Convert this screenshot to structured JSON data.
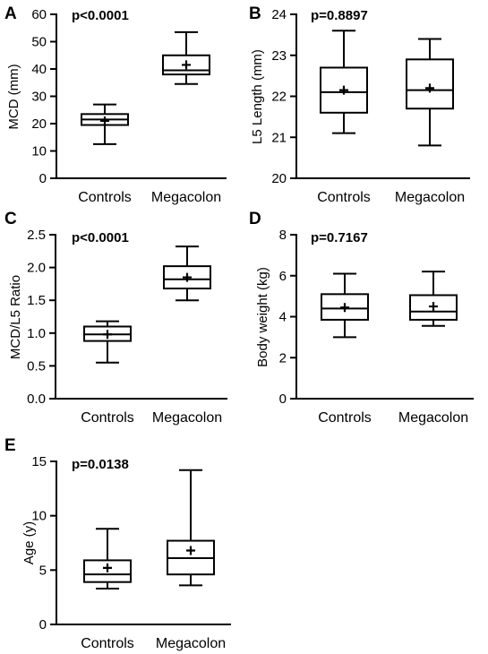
{
  "chart_data": [
    {
      "type": "box",
      "panel": "A",
      "annotation": "p<0.0001",
      "ylabel": "MCD (mm)",
      "ylim": [
        0,
        60
      ],
      "yticks": [
        0,
        10,
        20,
        30,
        40,
        50,
        60
      ],
      "categories": [
        "Controls",
        "Megacolon"
      ],
      "boxes": [
        {
          "min": 12.5,
          "q1": 19.5,
          "median": 21.5,
          "q3": 23.5,
          "max": 27.0,
          "mean": 21.0
        },
        {
          "min": 34.5,
          "q1": 38.0,
          "median": 39.5,
          "q3": 45.0,
          "max": 53.5,
          "mean": 41.5
        }
      ]
    },
    {
      "type": "box",
      "panel": "B",
      "annotation": "p=0.8897",
      "ylabel": "L5 Length (mm)",
      "ylim": [
        20,
        24
      ],
      "yticks": [
        20,
        21,
        22,
        23,
        24
      ],
      "categories": [
        "Controls",
        "Megacolon"
      ],
      "boxes": [
        {
          "min": 21.1,
          "q1": 21.6,
          "median": 22.1,
          "q3": 22.7,
          "max": 23.6,
          "mean": 22.15
        },
        {
          "min": 20.8,
          "q1": 21.7,
          "median": 22.15,
          "q3": 22.9,
          "max": 23.4,
          "mean": 22.2
        }
      ]
    },
    {
      "type": "box",
      "panel": "C",
      "annotation": "p<0.0001",
      "ylabel": "MCD/L5 Ratio",
      "ylim": [
        0,
        2.5
      ],
      "yticks": [
        0.0,
        0.5,
        1.0,
        1.5,
        2.0,
        2.5
      ],
      "ytick_labels": [
        "0.0",
        "0.5",
        "1.0",
        "1.5",
        "2.0",
        "2.5"
      ],
      "categories": [
        "Controls",
        "Megacolon"
      ],
      "boxes": [
        {
          "min": 0.55,
          "q1": 0.88,
          "median": 0.98,
          "q3": 1.1,
          "max": 1.18,
          "mean": 0.98
        },
        {
          "min": 1.5,
          "q1": 1.68,
          "median": 1.82,
          "q3": 2.02,
          "max": 2.32,
          "mean": 1.85
        }
      ]
    },
    {
      "type": "box",
      "panel": "D",
      "annotation": "p=0.7167",
      "ylabel": "Body weight (kg)",
      "ylim": [
        0,
        8
      ],
      "yticks": [
        0,
        2,
        4,
        6,
        8
      ],
      "categories": [
        "Controls",
        "Megacolon"
      ],
      "boxes": [
        {
          "min": 3.0,
          "q1": 3.85,
          "median": 4.4,
          "q3": 5.1,
          "max": 6.1,
          "mean": 4.45
        },
        {
          "min": 3.55,
          "q1": 3.85,
          "median": 4.25,
          "q3": 5.05,
          "max": 6.2,
          "mean": 4.5
        }
      ]
    },
    {
      "type": "box",
      "panel": "E",
      "annotation": "p=0.0138",
      "ylabel": "Age (y)",
      "ylim": [
        0,
        15
      ],
      "yticks": [
        0,
        5,
        10,
        15
      ],
      "categories": [
        "Controls",
        "Megacolon"
      ],
      "boxes": [
        {
          "min": 3.3,
          "q1": 3.9,
          "median": 4.6,
          "q3": 5.9,
          "max": 8.8,
          "mean": 5.2
        },
        {
          "min": 3.6,
          "q1": 4.6,
          "median": 6.1,
          "q3": 7.7,
          "max": 14.2,
          "mean": 6.8
        }
      ]
    }
  ]
}
